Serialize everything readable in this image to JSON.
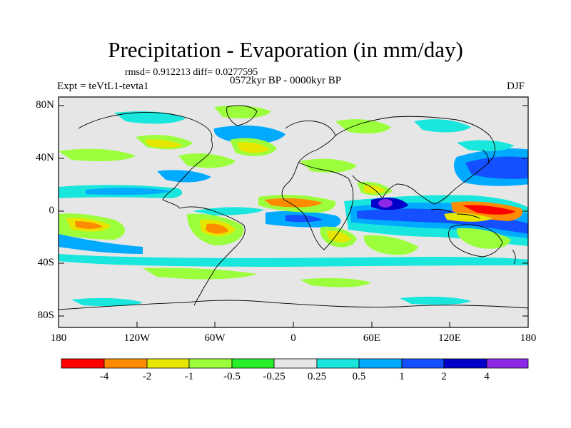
{
  "title": "Precipitation - Evaporation (in mm/day)",
  "stats": "rmsd= 0.912213 diff= 0.0277595",
  "period": "0572kyr BP - 0000kyr BP",
  "experiment": "Expt = teVtL1-tevta1",
  "season": "DJF",
  "axes": {
    "y_ticks": [
      "80N",
      "40N",
      "0",
      "40S",
      "80S"
    ],
    "x_ticks": [
      "180",
      "120W",
      "60W",
      "0",
      "60E",
      "120E",
      "180"
    ]
  },
  "colorbar": {
    "labels": [
      "-4",
      "-2",
      "-1",
      "-0.5",
      "-0.25",
      "0.25",
      "0.5",
      "1",
      "2",
      "4"
    ],
    "colors": [
      "#ff0000",
      "#ff8c00",
      "#e6e600",
      "#9bff3c",
      "#28f028",
      "#e6e6e6",
      "#19e6dc",
      "#00aaff",
      "#1450ff",
      "#0000c8",
      "#8c28e6"
    ]
  },
  "ocean_color": "#e6e6e6"
}
